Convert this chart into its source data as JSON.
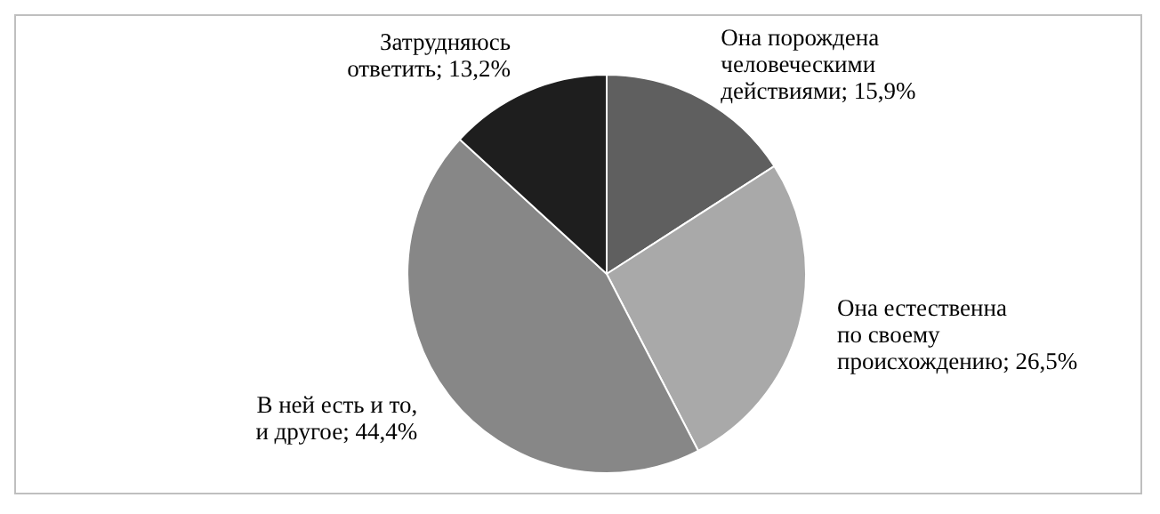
{
  "chart_data": {
    "type": "pie",
    "categories": [
      "Она порождена человеческими действиями",
      "Она естественна по своему происхождению",
      "В ней есть и то, и другое",
      "Затрудняюсь ответить"
    ],
    "values": [
      15.9,
      26.5,
      44.4,
      13.2
    ],
    "value_labels": [
      "15,9%",
      "26,5%",
      "44,4%",
      "13,2%"
    ],
    "colors": [
      "#5f5f5f",
      "#a9a9a9",
      "#878787",
      "#1e1e1e"
    ],
    "legend": false
  }
}
